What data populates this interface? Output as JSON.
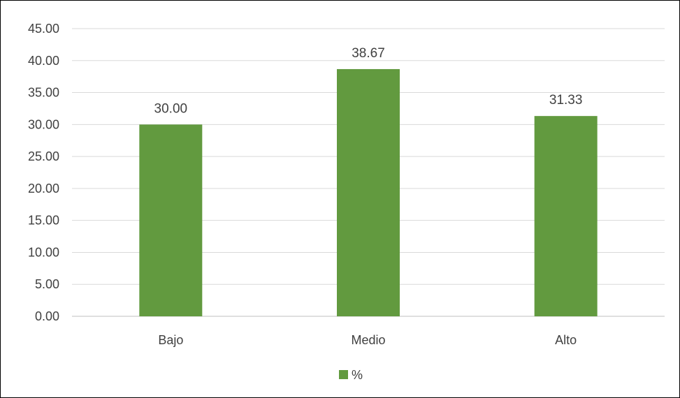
{
  "chart_data": {
    "type": "bar",
    "title": "",
    "xlabel": "",
    "ylabel": "",
    "categories": [
      "Bajo",
      "Medio",
      "Alto"
    ],
    "series": [
      {
        "name": "%",
        "values": [
          30.0,
          38.67,
          31.33
        ],
        "color": "#629A3F"
      }
    ],
    "data_labels": [
      "30.00",
      "38.67",
      "31.33"
    ],
    "ylim": [
      0,
      45
    ],
    "y_ticks": [
      "0.00",
      "5.00",
      "10.00",
      "15.00",
      "20.00",
      "25.00",
      "30.00",
      "35.00",
      "40.00",
      "45.00"
    ],
    "grid": true,
    "legend": "bottom",
    "gridline_color": "#D9D9D9",
    "axis_color": "#BFBFBF",
    "text_color": "#404040"
  }
}
